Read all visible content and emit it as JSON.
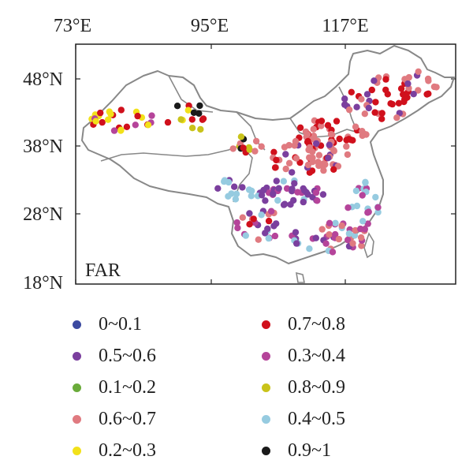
{
  "map": {
    "panel_label": "FAR",
    "lon_ticks": [
      "73°E",
      "95°E",
      "117°E"
    ],
    "lat_ticks": [
      "48°N",
      "38°N",
      "28°N",
      "18°N"
    ]
  },
  "legend": [
    {
      "label": "0~0.1",
      "color": "#3b4aa0"
    },
    {
      "label": "0.7~0.8",
      "color": "#d0101c"
    },
    {
      "label": "0.5~0.6",
      "color": "#7b3f9e"
    },
    {
      "label": "0.3~0.4",
      "color": "#b5449a"
    },
    {
      "label": "0.1~0.2",
      "color": "#6aab3a"
    },
    {
      "label": "0.8~0.9",
      "color": "#c9c31a"
    },
    {
      "label": "0.6~0.7",
      "color": "#e07a80"
    },
    {
      "label": "0.4~0.5",
      "color": "#96cbe0"
    },
    {
      "label": "0.2~0.3",
      "color": "#f2e11a"
    },
    {
      "label": "0.9~1",
      "color": "#1a1a1a"
    }
  ]
}
